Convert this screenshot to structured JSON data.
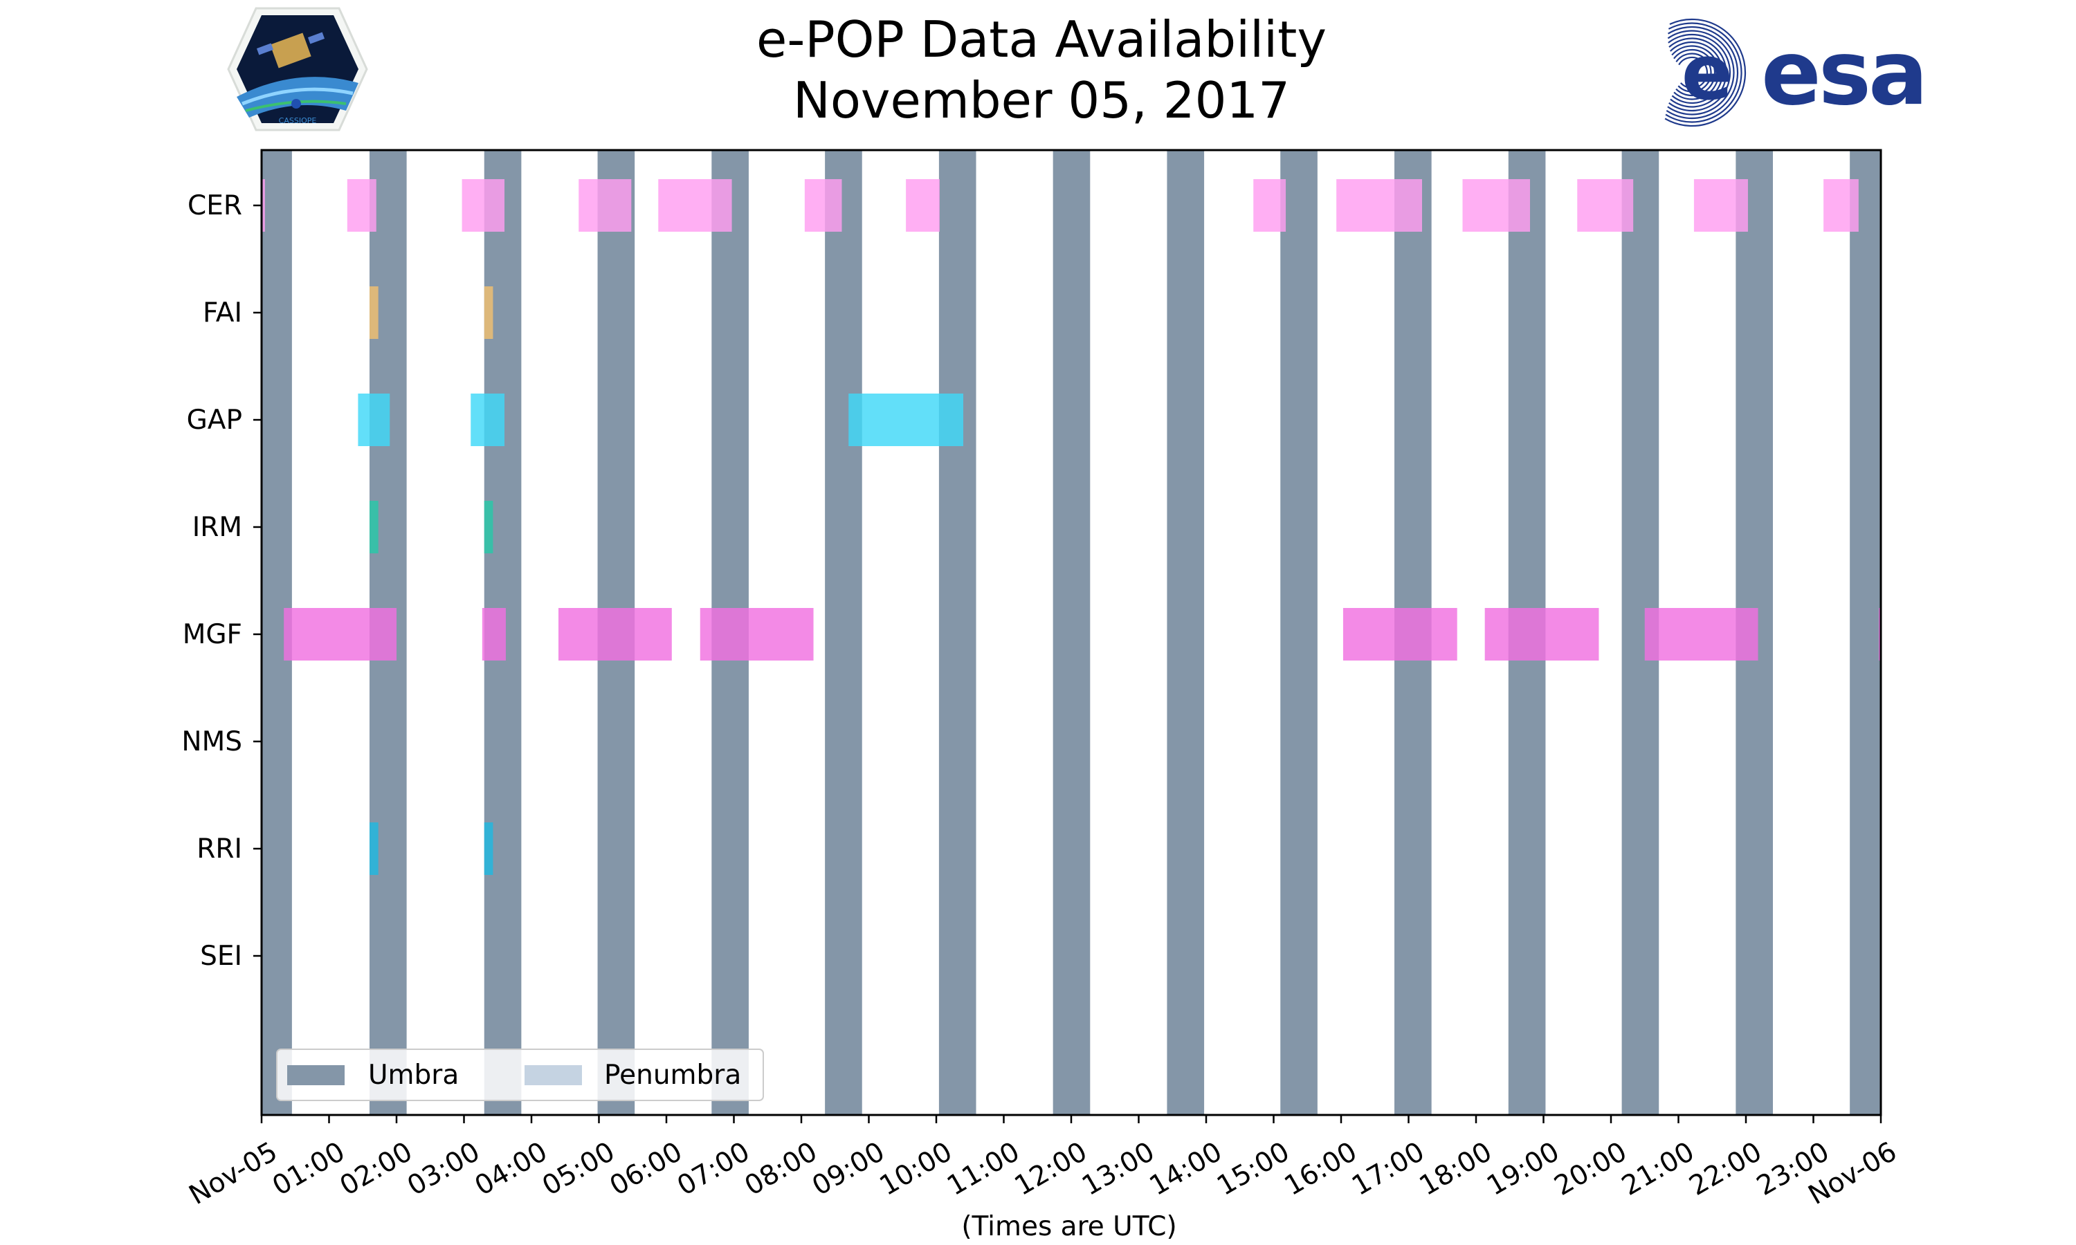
{
  "colors": {
    "umbra": "#8496a8",
    "penumbra": "#c5d3e2",
    "CER": "#ff9ef0",
    "FAI": "#f0c070",
    "GAP": "#40d8f8",
    "IRM": "#28c8a8",
    "MGF": "#f070e0",
    "RRI": "#20b8e0",
    "esa": "#1f3a8c"
  },
  "logos": {
    "cassiope_text": "CASSIOPE",
    "esa_text": "esa"
  },
  "chart_data": {
    "type": "timeline",
    "title": "e-POP Data Availability",
    "subtitle": "November 05, 2017",
    "xlabel": "(Times are UTC)",
    "xlim_hours": [
      0,
      24
    ],
    "xtick_labels": [
      "Nov-05",
      "01:00",
      "02:00",
      "03:00",
      "04:00",
      "05:00",
      "06:00",
      "07:00",
      "08:00",
      "09:00",
      "10:00",
      "11:00",
      "12:00",
      "13:00",
      "14:00",
      "15:00",
      "16:00",
      "17:00",
      "18:00",
      "19:00",
      "20:00",
      "21:00",
      "22:00",
      "23:00",
      "Nov-06"
    ],
    "instruments": [
      "CER",
      "FAI",
      "GAP",
      "IRM",
      "MGF",
      "NMS",
      "RRI",
      "SEI"
    ],
    "legend": {
      "umbra": "Umbra",
      "penumbra": "Penumbra",
      "location": "lower-left"
    },
    "umbra_intervals": [
      [
        0.0,
        0.45
      ],
      [
        1.6,
        2.15
      ],
      [
        3.3,
        3.85
      ],
      [
        4.98,
        5.53
      ],
      [
        6.67,
        7.22
      ],
      [
        8.35,
        8.9
      ],
      [
        10.04,
        10.59
      ],
      [
        11.73,
        12.28
      ],
      [
        13.42,
        13.97
      ],
      [
        15.1,
        15.65
      ],
      [
        16.79,
        17.34
      ],
      [
        18.48,
        19.03
      ],
      [
        20.16,
        20.71
      ],
      [
        21.85,
        22.4
      ],
      [
        23.54,
        24.0
      ]
    ],
    "series": [
      {
        "name": "CER",
        "intervals": [
          [
            0.0,
            0.05
          ],
          [
            1.27,
            1.7
          ],
          [
            2.97,
            3.6
          ],
          [
            4.7,
            5.48
          ],
          [
            5.88,
            6.97
          ],
          [
            8.05,
            8.6
          ],
          [
            9.55,
            10.05
          ],
          [
            14.7,
            15.18
          ],
          [
            15.93,
            17.2
          ],
          [
            17.8,
            18.8
          ],
          [
            19.5,
            20.33
          ],
          [
            21.23,
            22.03
          ],
          [
            23.15,
            23.67
          ]
        ]
      },
      {
        "name": "FAI",
        "intervals": [
          [
            1.6,
            1.73
          ],
          [
            3.3,
            3.43
          ]
        ]
      },
      {
        "name": "GAP",
        "intervals": [
          [
            1.43,
            1.9
          ],
          [
            3.1,
            3.6
          ],
          [
            8.7,
            10.4
          ]
        ]
      },
      {
        "name": "IRM",
        "intervals": [
          [
            1.6,
            1.73
          ],
          [
            3.3,
            3.43
          ]
        ]
      },
      {
        "name": "MGF",
        "intervals": [
          [
            0.33,
            2.0
          ],
          [
            3.27,
            3.62
          ],
          [
            4.4,
            6.08
          ],
          [
            6.5,
            8.18
          ],
          [
            16.03,
            17.72
          ],
          [
            18.13,
            19.82
          ],
          [
            20.5,
            22.18
          ],
          [
            23.97,
            24.0
          ]
        ]
      },
      {
        "name": "NMS",
        "intervals": []
      },
      {
        "name": "RRI",
        "intervals": [
          [
            1.6,
            1.73
          ],
          [
            3.3,
            3.43
          ]
        ]
      },
      {
        "name": "SEI",
        "intervals": []
      }
    ]
  }
}
